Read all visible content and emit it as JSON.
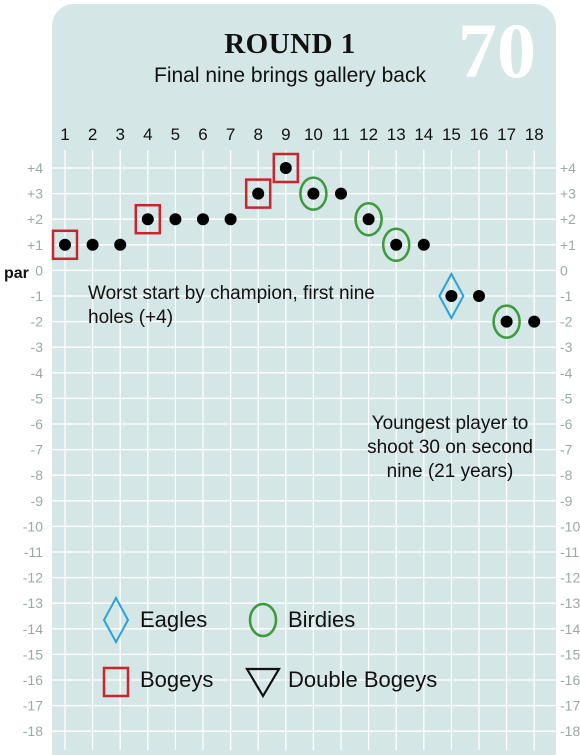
{
  "header": {
    "title": "ROUND 1",
    "subtitle": "Final nine brings gallery back",
    "score": "70"
  },
  "par_label": "par",
  "annotations": [
    "Worst start by champion, first nine holes (+4)",
    "Youngest player to shoot 30 on second nine (21 years)"
  ],
  "legend": [
    {
      "label": "Eagles",
      "marker": "diamond",
      "color": "#2aa3dc"
    },
    {
      "label": "Birdies",
      "marker": "circle",
      "color": "#3a9a3c"
    },
    {
      "label": "Bogeys",
      "marker": "square",
      "color": "#c8262c"
    },
    {
      "label": "Double Bogeys",
      "marker": "triangle-down",
      "color": "#111111"
    }
  ],
  "colors": {
    "background": "#d4e6e5",
    "grid": "#ffffff",
    "axis_labels": "#9aa9a8",
    "score_number": "#ffffff",
    "dot": "#000000"
  },
  "chart_data": {
    "type": "line",
    "title": "ROUND 1",
    "subtitle": "Final nine brings gallery back",
    "x": [
      1,
      2,
      3,
      4,
      5,
      6,
      7,
      8,
      9,
      10,
      11,
      12,
      13,
      14,
      15,
      16,
      17,
      18
    ],
    "x_tick_labels": [
      "1",
      "2",
      "3",
      "4",
      "5",
      "6",
      "7",
      "8",
      "9",
      "10",
      "11",
      "12",
      "13",
      "14",
      "15",
      "16",
      "17",
      "18"
    ],
    "y_tick_labels": [
      "+4",
      "+3",
      "+2",
      "+1",
      "0",
      "-1",
      "-2",
      "-3",
      "-4",
      "-5",
      "-6",
      "-7",
      "-8",
      "-9",
      "-10",
      "-11",
      "-12",
      "-13",
      "-14",
      "-15",
      "-16",
      "-17",
      "-18"
    ],
    "ylim": [
      -18,
      4
    ],
    "grid": true,
    "series": [
      {
        "values": [
          1,
          1,
          1,
          2,
          2,
          2,
          2,
          3,
          4,
          3,
          3,
          2,
          1,
          1,
          -1,
          -1,
          -2,
          -2
        ]
      }
    ],
    "hole_results": [
      "bogey",
      "par",
      "par",
      "bogey",
      "par",
      "par",
      "par",
      "bogey",
      "bogey",
      "birdie",
      "par",
      "birdie",
      "birdie",
      "par",
      "eagle",
      "par",
      "birdie",
      "par"
    ]
  }
}
